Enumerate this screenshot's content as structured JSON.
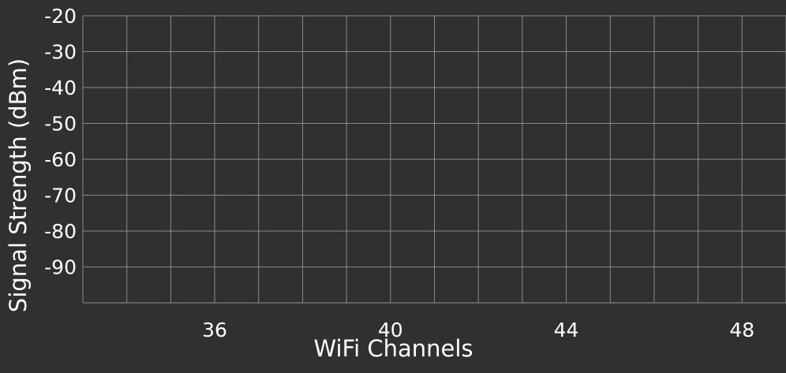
{
  "chart_data": {
    "type": "line",
    "title": "",
    "xlabel": "WiFi Channels",
    "ylabel": "Signal Strength (dBm)",
    "xlim": [
      33,
      49
    ],
    "ylim": [
      -100,
      -20
    ],
    "x_ticks": [
      36,
      40,
      44,
      48
    ],
    "y_ticks": [
      -20,
      -30,
      -40,
      -50,
      -60,
      -70,
      -80,
      -90
    ],
    "x_grid_step": 1,
    "grid": true,
    "series": [],
    "colors": {
      "background": "#303030",
      "grid": "#8a8a8a",
      "text": "#ffffff"
    }
  }
}
